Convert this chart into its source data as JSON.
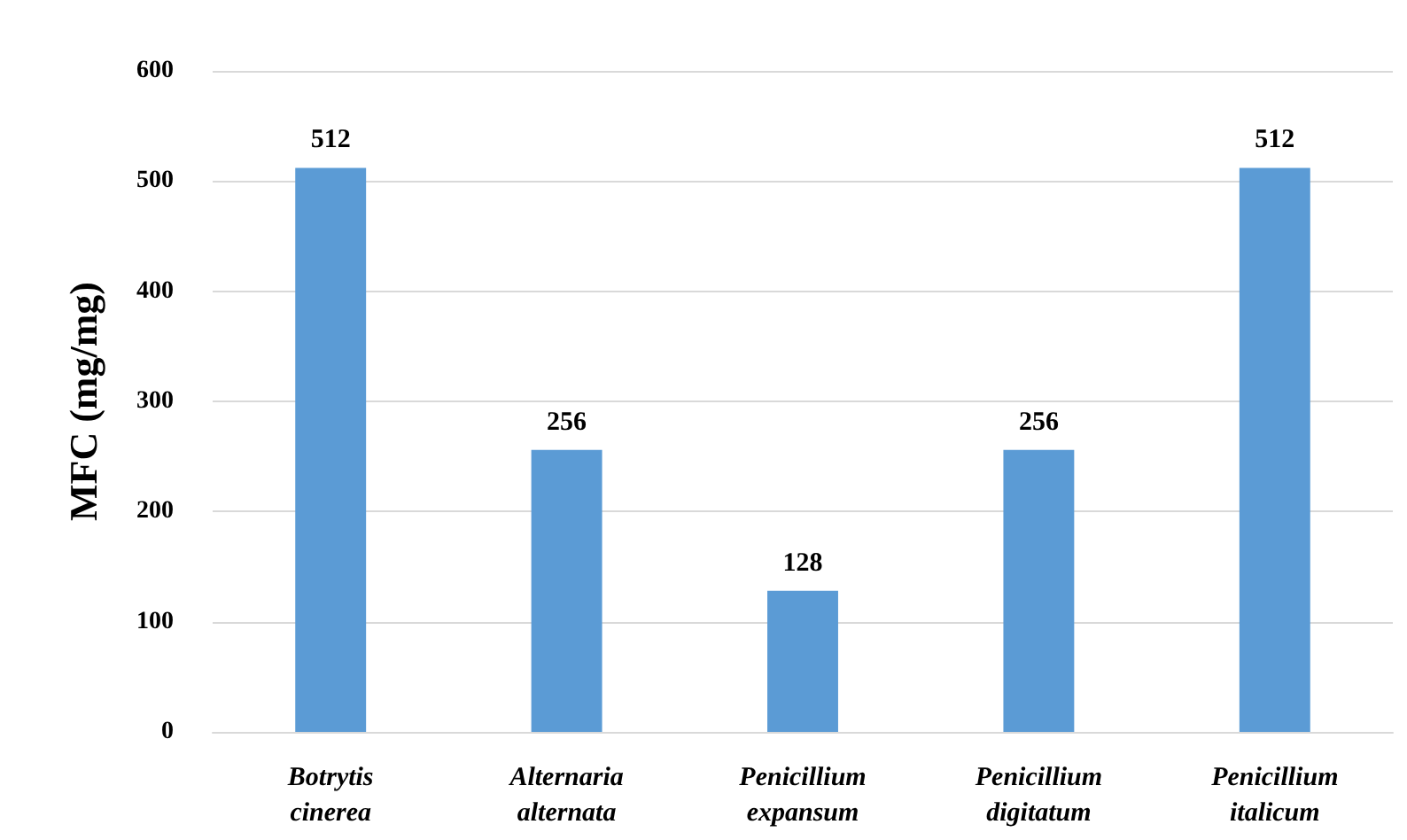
{
  "chart_data": {
    "type": "bar",
    "ylabel": "MFC (mg/mg)",
    "categories": [
      "Botrytis cinerea",
      "Alternaria alternata",
      "Penicillium expansum",
      "Penicillium digitatum",
      "Penicillium italicum"
    ],
    "values": [
      512,
      256,
      128,
      256,
      512
    ],
    "color": "#5b9bd5",
    "ylim": [
      0,
      600
    ],
    "yticks": [
      0,
      100,
      200,
      300,
      400,
      500,
      600
    ],
    "grid": "y",
    "data_labels": true
  }
}
